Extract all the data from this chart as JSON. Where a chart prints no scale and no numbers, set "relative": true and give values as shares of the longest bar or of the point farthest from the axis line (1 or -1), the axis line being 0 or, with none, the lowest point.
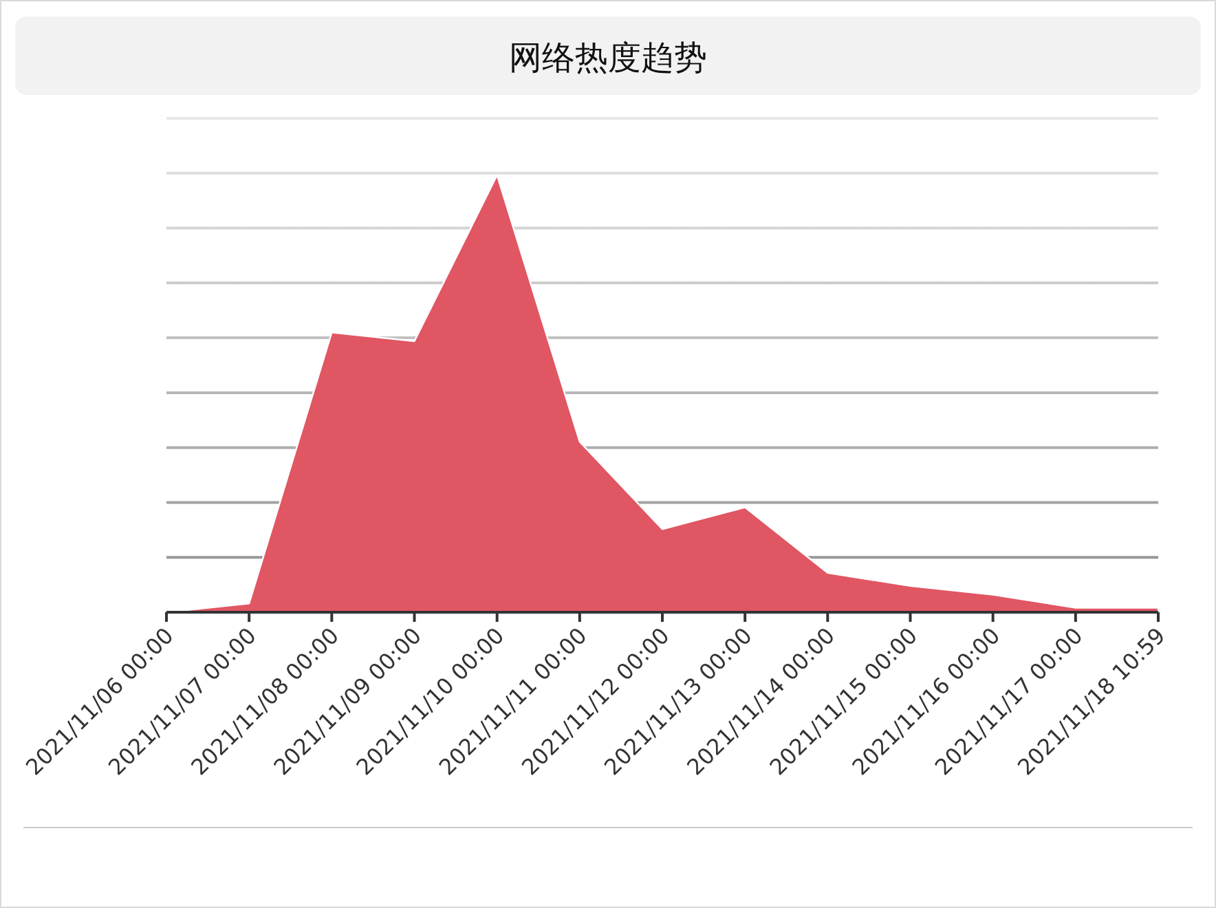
{
  "chart_data": {
    "type": "area",
    "title": "网络热度趋势",
    "categories": [
      "2021/11/06 00:00",
      "2021/11/07 00:00",
      "2021/11/08 00:00",
      "2021/11/09 00:00",
      "2021/11/10 00:00",
      "2021/11/11 00:00",
      "2021/11/12 00:00",
      "2021/11/13 00:00",
      "2021/11/14 00:00",
      "2021/11/15 00:00",
      "2021/11/16 00:00",
      "2021/11/17 00:00",
      "2021/11/18 10:59"
    ],
    "values": [
      0,
      0.02,
      0.64,
      0.62,
      1,
      0.39,
      0.19,
      0.24,
      0.09,
      0.06,
      0.04,
      0.01,
      0.01
    ],
    "color": "#e05662",
    "relative": true,
    "grid": "y"
  }
}
